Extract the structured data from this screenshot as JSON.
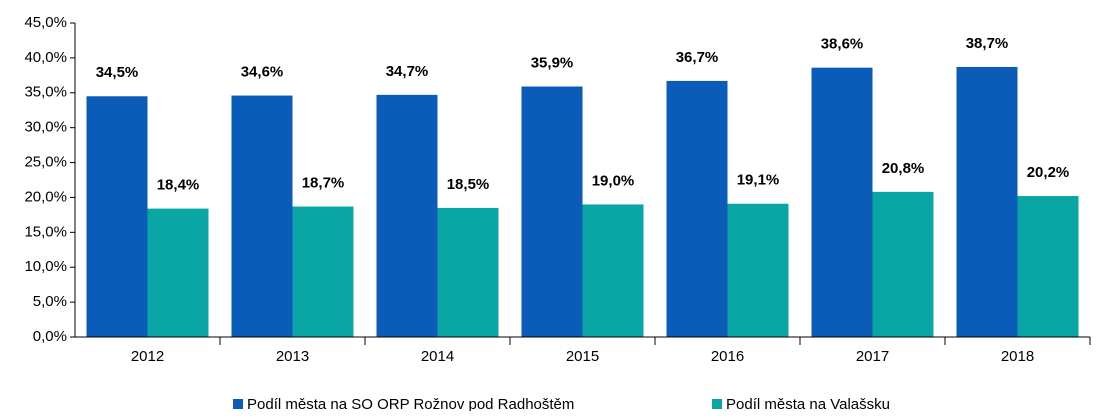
{
  "chart_data": {
    "type": "bar",
    "categories": [
      "2012",
      "2013",
      "2014",
      "2015",
      "2016",
      "2017",
      "2018"
    ],
    "series": [
      {
        "name": "Podíl města na SO ORP Rožnov pod Radhoštěm",
        "color": "#0a5cb8",
        "values": [
          34.5,
          34.6,
          34.7,
          35.9,
          36.7,
          38.6,
          38.7
        ],
        "value_labels": [
          "34,5%",
          "34,6%",
          "34,7%",
          "35,9%",
          "36,7%",
          "38,6%",
          "38,7%"
        ]
      },
      {
        "name": "Podíl města na Valašsku",
        "color": "#0aa5a5",
        "values": [
          18.4,
          18.7,
          18.5,
          19.0,
          19.1,
          20.8,
          20.2
        ],
        "value_labels": [
          "18,4%",
          "18,7%",
          "18,5%",
          "19,0%",
          "19,1%",
          "20,8%",
          "20,2%"
        ]
      }
    ],
    "ylim": [
      0,
      45
    ],
    "yticks": [
      {
        "value": 0,
        "label": "0,0%"
      },
      {
        "value": 5,
        "label": "5,0%"
      },
      {
        "value": 10,
        "label": "10,0%"
      },
      {
        "value": 15,
        "label": "15,0%"
      },
      {
        "value": 20,
        "label": "20,0%"
      },
      {
        "value": 25,
        "label": "25,0%"
      },
      {
        "value": 30,
        "label": "30,0%"
      },
      {
        "value": 35,
        "label": "35,0%"
      },
      {
        "value": 40,
        "label": "40,0%"
      },
      {
        "value": 45,
        "label": "45,0%"
      }
    ],
    "grid": false,
    "legend": "bottom"
  }
}
